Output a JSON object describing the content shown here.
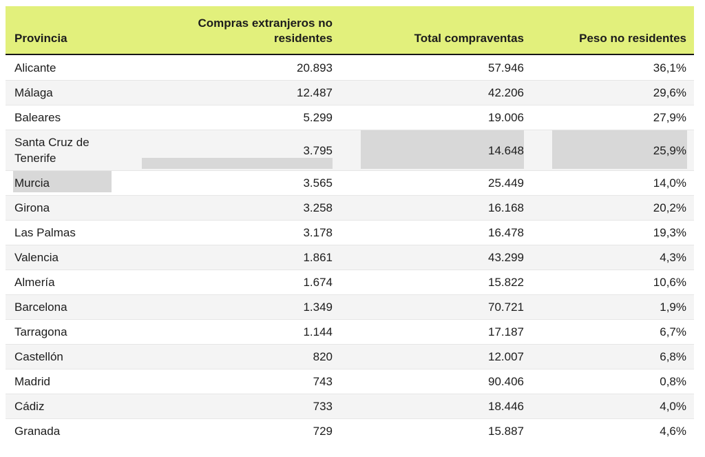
{
  "colors": {
    "header_background": "#e2f07c",
    "header_border": "#161616",
    "alt_row_background": "#f4f4f4",
    "row_separator": "#e6e6e6",
    "selection_highlight": "#d8d8d8",
    "text": "#1c1c1c",
    "page_background": "#ffffff"
  },
  "chart_data": {
    "type": "table",
    "columns": [
      "Provincia",
      "Compras extranjeros no residentes",
      "Total compraventas",
      "Peso no residentes"
    ],
    "rows": [
      [
        "Alicante",
        "20.893",
        "57.946",
        "36,1%"
      ],
      [
        "Málaga",
        "12.487",
        "42.206",
        "29,6%"
      ],
      [
        "Baleares",
        "5.299",
        "19.006",
        "27,9%"
      ],
      [
        "Santa Cruz de Tenerife",
        "3.795",
        "14.648",
        "25,9%"
      ],
      [
        "Murcia",
        "3.565",
        "25.449",
        "14,0%"
      ],
      [
        "Girona",
        "3.258",
        "16.168",
        "20,2%"
      ],
      [
        "Las Palmas",
        "3.178",
        "16.478",
        "19,3%"
      ],
      [
        "Valencia",
        "1.861",
        "43.299",
        "4,3%"
      ],
      [
        "Almería",
        "1.674",
        "15.822",
        "10,6%"
      ],
      [
        "Barcelona",
        "1.349",
        "70.721",
        "1,9%"
      ],
      [
        "Tarragona",
        "1.144",
        "17.187",
        "6,7%"
      ],
      [
        "Castellón",
        "820",
        "12.007",
        "6,8%"
      ],
      [
        "Madrid",
        "743",
        "90.406",
        "0,8%"
      ],
      [
        "Cádiz",
        "733",
        "18.446",
        "4,0%"
      ],
      [
        "Granada",
        "729",
        "15.887",
        "4,6%"
      ]
    ],
    "title": "",
    "notes": "Selection highlights visible over: Compras cell second line (Santa Cruz de Tenerife row), Total compraventas cell, Peso no residentes cell, and Murcia province name"
  }
}
